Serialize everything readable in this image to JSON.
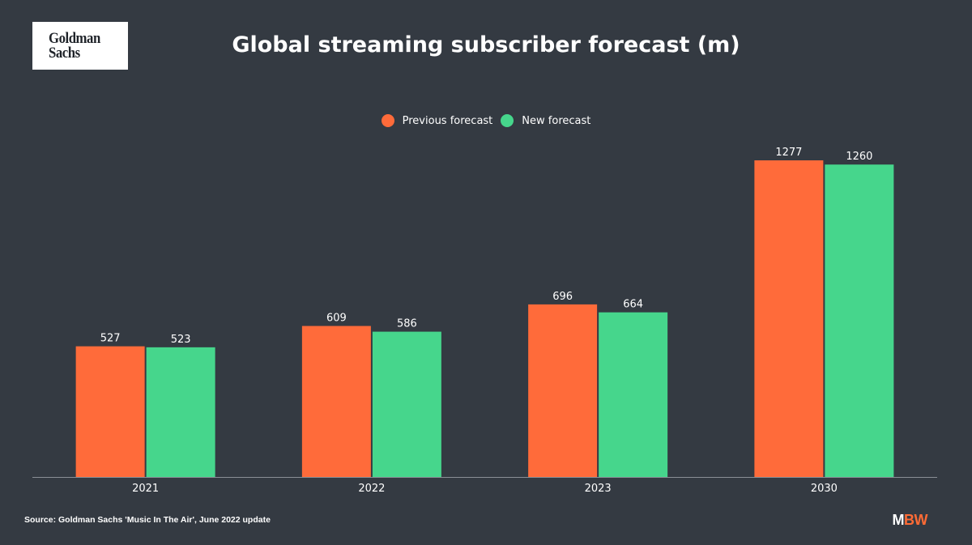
{
  "logo": {
    "line1": "Goldman",
    "line2": "Sachs"
  },
  "colors": {
    "previous": "#ff6b3a",
    "new": "#46d68c",
    "background": "#343a42",
    "axis": "#8a8f96"
  },
  "chart_data": {
    "type": "bar",
    "title": "Global streaming subscriber forecast (m)",
    "categories": [
      "2021",
      "2022",
      "2023",
      "2030"
    ],
    "series": [
      {
        "name": "Previous forecast",
        "values": [
          527,
          609,
          696,
          1277
        ]
      },
      {
        "name": "New forecast",
        "values": [
          523,
          586,
          664,
          1260
        ]
      }
    ],
    "ylim": [
      0,
      1277
    ],
    "grid": false,
    "legend": "top-center",
    "xlabel": "",
    "ylabel": ""
  },
  "footer": {
    "source": "Source: Goldman Sachs 'Music In The Air', June 2022 update",
    "brand_m": "M",
    "brand_bw": "BW"
  }
}
